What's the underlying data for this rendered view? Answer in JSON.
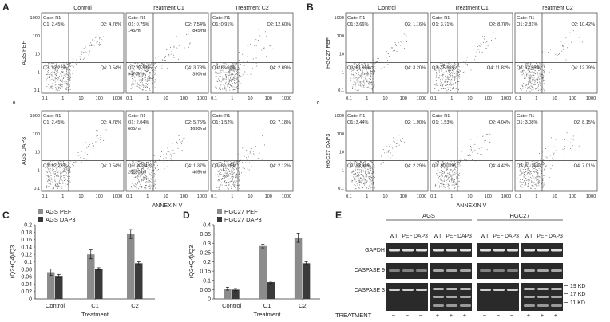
{
  "panel_letters": [
    "A",
    "B",
    "C",
    "D",
    "E"
  ],
  "flow": {
    "col_titles": [
      "Control",
      "Treatment C1",
      "Treatment C2"
    ],
    "y_ticks": [
      "1000",
      "100",
      "10",
      "1",
      "0.1"
    ],
    "x_ticks": [
      "0.1",
      "1",
      "10",
      "100",
      "1000"
    ],
    "axis_x": "ANNEXIN V",
    "axis_y": "PI",
    "gate": "Gate: R1",
    "panel_A": {
      "rows": [
        "AGS PEF",
        "AGS DAP3"
      ],
      "cells": [
        [
          {
            "q1": "Q1: 2.45%",
            "q2": "Q2: 4.78%",
            "q3": "Q3: 92.22%",
            "q4": "Q4: 0.54%",
            "extra": []
          },
          {
            "q1": "Q1: 0.75%",
            "q2": "Q2: 7.54%",
            "q3": "Q3: 87.93%",
            "q4": "Q4: 3.78%",
            "extra": [
              "145/ml",
              "845/ml",
              "9470/ml",
              "390/ml"
            ]
          },
          {
            "q1": "Q1: 0.91%",
            "q2": "Q2: 12.60%",
            "q3": "Q3: 83.60%",
            "q4": "Q4: 2.89%",
            "extra": []
          }
        ],
        [
          {
            "q1": "Q1: 2.45%",
            "q2": "Q2: 4.78%",
            "q3": "Q3: 92.22%",
            "q4": "Q4: 0.54%",
            "extra": []
          },
          {
            "q1": "Q1: 2.04%",
            "q2": "Q2: 5.75%",
            "q3": "Q3: 90.84%",
            "q4": "Q4: 1.37%",
            "extra": [
              "605/ml",
              "1630/ml",
              "25190/ml",
              "405/ml"
            ]
          },
          {
            "q1": "Q1: 1.52%",
            "q2": "Q2: 7.18%",
            "q3": "Q3: 89.18%",
            "q4": "Q4: 2.12%",
            "extra": []
          }
        ]
      ]
    },
    "panel_B": {
      "rows": [
        "HGC27 PEF",
        "HGC27 DAP3"
      ],
      "cells": [
        [
          {
            "q1": "Q1: 3.66%",
            "q2": "Q2: 1.16%",
            "q3": "Q3: 91.99%",
            "q4": "Q4: 3.20%",
            "extra": []
          },
          {
            "q1": "Q1: 3.71%",
            "q2": "Q2: 8.78%",
            "q3": "Q3: 75.68%",
            "q4": "Q4: 11.82%",
            "extra": []
          },
          {
            "q1": "Q1: 2.81%",
            "q2": "Q2: 10.42%",
            "q3": "Q3: 73.99%",
            "q4": "Q4: 12.79%",
            "extra": []
          }
        ],
        [
          {
            "q1": "Q1: 3.44%",
            "q2": "Q2: 1.90%",
            "q3": "Q3: 92.38%",
            "q4": "Q4: 2.29%",
            "extra": []
          },
          {
            "q1": "Q1: 1.53%",
            "q2": "Q2: 4.04%",
            "q3": "Q3: 90.01%",
            "q4": "Q4: 4.42%",
            "extra": []
          },
          {
            "q1": "Q1: 3.08%",
            "q2": "Q2: 8.15%",
            "q3": "Q3: 81.76%",
            "q4": "Q4: 7.01%",
            "extra": []
          }
        ]
      ]
    }
  },
  "chart_data": [
    {
      "type": "bar",
      "ylabel": "(Q2+Q4)/Q3",
      "xlabel": "Treatment",
      "categories": [
        "Control",
        "C1",
        "C2"
      ],
      "ylim": [
        0,
        0.2
      ],
      "yticks": [
        "0",
        "0.02",
        "0.04",
        "0.06",
        "0.08",
        "0.1",
        "0.12",
        "0.14",
        "0.16",
        "0.18",
        "0.2"
      ],
      "series": [
        {
          "name": "AGS PEF",
          "values": [
            0.072,
            0.12,
            0.175
          ],
          "errors": [
            0.009,
            0.012,
            0.012
          ],
          "color": "#8c8c8c"
        },
        {
          "name": "AGS DAP3",
          "values": [
            0.062,
            0.081,
            0.096
          ],
          "errors": [
            0.004,
            0.003,
            0.004
          ],
          "color": "#3a3a3a"
        }
      ],
      "legend": "top-left"
    },
    {
      "type": "bar",
      "ylabel": "(Q2+Q4)/Q3",
      "xlabel": "Treatment",
      "categories": [
        "Control",
        "C1",
        "C2"
      ],
      "ylim": [
        0,
        0.4
      ],
      "yticks": [
        "0",
        "0.05",
        "0.1",
        "0.15",
        "0.2",
        "0.25",
        "0.3",
        "0.35",
        "0.4"
      ],
      "series": [
        {
          "name": "HGC27 PEF",
          "values": [
            0.055,
            0.285,
            0.33
          ],
          "errors": [
            0.008,
            0.01,
            0.025
          ],
          "color": "#8c8c8c"
        },
        {
          "name": "HGC27 DAP3",
          "values": [
            0.05,
            0.09,
            0.192
          ],
          "errors": [
            0.006,
            0.005,
            0.008
          ],
          "color": "#3a3a3a"
        }
      ],
      "legend": "top-left"
    }
  ],
  "western": {
    "group_ags": "AGS",
    "group_hgc": "HGC27",
    "lanes": [
      "WT",
      "PEF",
      "DAP3",
      "WT",
      "PEF",
      "DAP3",
      "WT",
      "PEF",
      "DAP3",
      "WT",
      "PEF",
      "DAP3"
    ],
    "rows": [
      "GAPDH",
      "CASPASE 9",
      "CASPASE 3"
    ],
    "kd": [
      "19 KD",
      "17 KD",
      "11 KD"
    ],
    "treatment_label": "TREATMENT",
    "treatment_marks": [
      "−",
      "−",
      "−",
      "+",
      "+",
      "+",
      "−",
      "−",
      "−",
      "+",
      "+",
      "+"
    ]
  }
}
